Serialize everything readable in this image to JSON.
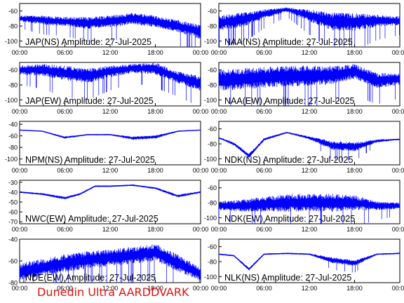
{
  "footer": "Dunedin Ultra AARDDVARK",
  "colors": {
    "trace": "#0000ff",
    "axes": "#000000",
    "footer": "#e01010"
  },
  "chart_data": [
    {
      "type": "line",
      "title": "JAP(NS) Amplitude: 27-Jul-2025",
      "x_ticks": [
        "00:00",
        "06:00",
        "12:00",
        "18:00",
        "00:00"
      ],
      "y_ticks": [
        -60,
        -80,
        -100
      ],
      "ylim": [
        -108,
        -50
      ],
      "series": [
        {
          "name": "",
          "x": [
            "00:00",
            "03:00",
            "06:00",
            "09:00",
            "12:00",
            "15:00",
            "18:00",
            "21:00",
            "23:59"
          ],
          "y": [
            -70,
            -72,
            -74,
            -76,
            -74,
            -70,
            -74,
            -80,
            -88
          ],
          "spread": [
            4,
            6,
            6,
            8,
            8,
            8,
            8,
            8,
            10
          ]
        }
      ]
    },
    {
      "type": "line",
      "title": "NAA(NS) Amplitude: 27-Jul-2025",
      "x_ticks": [
        "00:00",
        "06:00",
        "12:00",
        "18:00",
        "00:00"
      ],
      "y_ticks": [
        -60,
        -80,
        -100
      ],
      "ylim": [
        -108,
        -50
      ],
      "series": [
        {
          "name": "",
          "x": [
            "00:00",
            "03:00",
            "06:00",
            "09:00",
            "12:00",
            "15:00",
            "18:00",
            "21:00",
            "23:59"
          ],
          "y": [
            -76,
            -72,
            -64,
            -58,
            -66,
            -74,
            -75,
            -73,
            -73
          ],
          "spread": [
            10,
            10,
            6,
            3,
            8,
            12,
            12,
            8,
            6
          ]
        }
      ]
    },
    {
      "type": "line",
      "title": "JAP(EW) Amplitude: 27-Jul-2025",
      "x_ticks": [
        "00:00",
        "06:00",
        "12:00",
        "18:00",
        "00:00"
      ],
      "y_ticks": [
        -60,
        -80,
        -100
      ],
      "ylim": [
        -108,
        -50
      ],
      "series": [
        {
          "name": "",
          "x": [
            "00:00",
            "03:00",
            "06:00",
            "09:00",
            "12:00",
            "15:00",
            "18:00",
            "21:00",
            "23:59"
          ],
          "y": [
            -60,
            -60,
            -64,
            -68,
            -62,
            -58,
            -58,
            -70,
            -78
          ],
          "spread": [
            6,
            8,
            10,
            10,
            8,
            6,
            8,
            8,
            10
          ]
        }
      ]
    },
    {
      "type": "line",
      "title": "NAA(EW) Amplitude: 27-Jul-2025",
      "x_ticks": [
        "00:00",
        "06:00",
        "12:00",
        "18:00",
        "00:00"
      ],
      "y_ticks": [
        -60,
        -80,
        -100
      ],
      "ylim": [
        -108,
        -50
      ],
      "series": [
        {
          "name": "",
          "x": [
            "00:00",
            "03:00",
            "06:00",
            "09:00",
            "12:00",
            "15:00",
            "18:00",
            "21:00",
            "23:59"
          ],
          "y": [
            -74,
            -72,
            -70,
            -68,
            -68,
            -67,
            -62,
            -74,
            -72
          ],
          "spread": [
            14,
            14,
            14,
            14,
            14,
            12,
            10,
            10,
            8
          ]
        }
      ]
    },
    {
      "type": "line",
      "title": "NPM(NS) Amplitude: 27-Jul-2025",
      "x_ticks": [
        "00:00",
        "06:00",
        "12:00",
        "18:00",
        "00:00"
      ],
      "y_ticks": [
        -40,
        -60,
        -80,
        -100
      ],
      "ylim": [
        -110,
        -35
      ],
      "series": [
        {
          "name": "",
          "x": [
            "00:00",
            "03:00",
            "06:00",
            "09:00",
            "12:00",
            "15:00",
            "18:00",
            "21:00",
            "23:59"
          ],
          "y": [
            -50,
            -52,
            -63,
            -58,
            -58,
            -64,
            -62,
            -52,
            -50
          ],
          "spread": [
            0.5,
            0.8,
            2,
            1,
            1,
            3,
            3,
            1,
            0.5
          ]
        }
      ]
    },
    {
      "type": "line",
      "title": "NDK(NS) Amplitude: 27-Jul-2025",
      "x_ticks": [
        "00:00",
        "06:00",
        "12:00",
        "18:00",
        "00:00"
      ],
      "y_ticks": [
        -60,
        -80,
        -100
      ],
      "ylim": [
        -108,
        -50
      ],
      "series": [
        {
          "name": "",
          "x": [
            "00:00",
            "02:00",
            "04:00",
            "06:00",
            "09:00",
            "12:00",
            "15:00",
            "18:00",
            "21:00",
            "23:59"
          ],
          "y": [
            -72,
            -80,
            -96,
            -74,
            -65,
            -72,
            -82,
            -84,
            -76,
            -74
          ],
          "spread": [
            1,
            2,
            3,
            2,
            1,
            2,
            6,
            6,
            2,
            1
          ]
        }
      ]
    },
    {
      "type": "line",
      "title": "NWC(EW) Amplitude: 27-Jul-2025",
      "x_ticks": [
        "00:00",
        "06:00",
        "12:00",
        "18:00",
        "00:00"
      ],
      "y_ticks": [
        -30,
        -40,
        -50,
        -60,
        -70
      ],
      "ylim": [
        -72,
        -28
      ],
      "series": [
        {
          "name": "",
          "x": [
            "00:00",
            "03:00",
            "06:00",
            "08:00",
            "10:00",
            "12:00",
            "15:00",
            "18:00",
            "21:00",
            "23:59"
          ],
          "y": [
            -40,
            -42,
            -46,
            -42,
            -34,
            -34,
            -33,
            -36,
            -44,
            -40
          ],
          "spread": [
            0.8,
            1,
            1.5,
            1,
            0.8,
            0.8,
            0.8,
            1,
            1.5,
            1
          ]
        }
      ]
    },
    {
      "type": "line",
      "title": "NDK(EW) Amplitude: 27-Jul-2025",
      "x_ticks": [
        "00:00",
        "06:00",
        "12:00",
        "18:00",
        "00:00"
      ],
      "y_ticks": [
        -60,
        -80,
        -100
      ],
      "ylim": [
        -108,
        -50
      ],
      "series": [
        {
          "name": "",
          "x": [
            "00:00",
            "03:00",
            "06:00",
            "09:00",
            "12:00",
            "15:00",
            "18:00",
            "21:00",
            "23:59"
          ],
          "y": [
            -84,
            -84,
            -82,
            -80,
            -80,
            -80,
            -80,
            -84,
            -84
          ],
          "spread": [
            6,
            8,
            10,
            12,
            12,
            12,
            10,
            6,
            4
          ]
        }
      ]
    },
    {
      "type": "line",
      "title": "NDE(EW) Amplitude: 27-Jul-2025",
      "x_ticks": [
        "00:00",
        "06:00",
        "12:00",
        "18:00",
        "00:00"
      ],
      "y_ticks": [
        -40,
        -60,
        -80
      ],
      "ylim": [
        -80,
        -40
      ],
      "series": [
        {
          "name": "",
          "x": [
            "00:00",
            "03:00",
            "06:00",
            "09:00",
            "12:00",
            "15:00",
            "18:00",
            "21:00",
            "23:59"
          ],
          "y": [
            -70,
            -66,
            -62,
            -59,
            -57,
            -55,
            -52,
            -62,
            -72
          ],
          "spread": [
            8,
            8,
            8,
            8,
            8,
            8,
            8,
            8,
            6
          ]
        }
      ]
    },
    {
      "type": "line",
      "title": "NLK(NS) Amplitude: 27-Jul-2025",
      "x_ticks": [
        "00:00",
        "06:00",
        "12:00",
        "18:00",
        "00:00"
      ],
      "y_ticks": [
        -60,
        -80,
        -100
      ],
      "ylim": [
        -108,
        -50
      ],
      "series": [
        {
          "name": "",
          "x": [
            "00:00",
            "02:00",
            "04:00",
            "06:00",
            "09:00",
            "12:00",
            "15:00",
            "18:00",
            "21:00",
            "23:59"
          ],
          "y": [
            -70,
            -72,
            -90,
            -70,
            -69,
            -70,
            -78,
            -82,
            -70,
            -69
          ],
          "spread": [
            1,
            1,
            2,
            1,
            1,
            1,
            4,
            4,
            1,
            1
          ]
        }
      ]
    }
  ]
}
